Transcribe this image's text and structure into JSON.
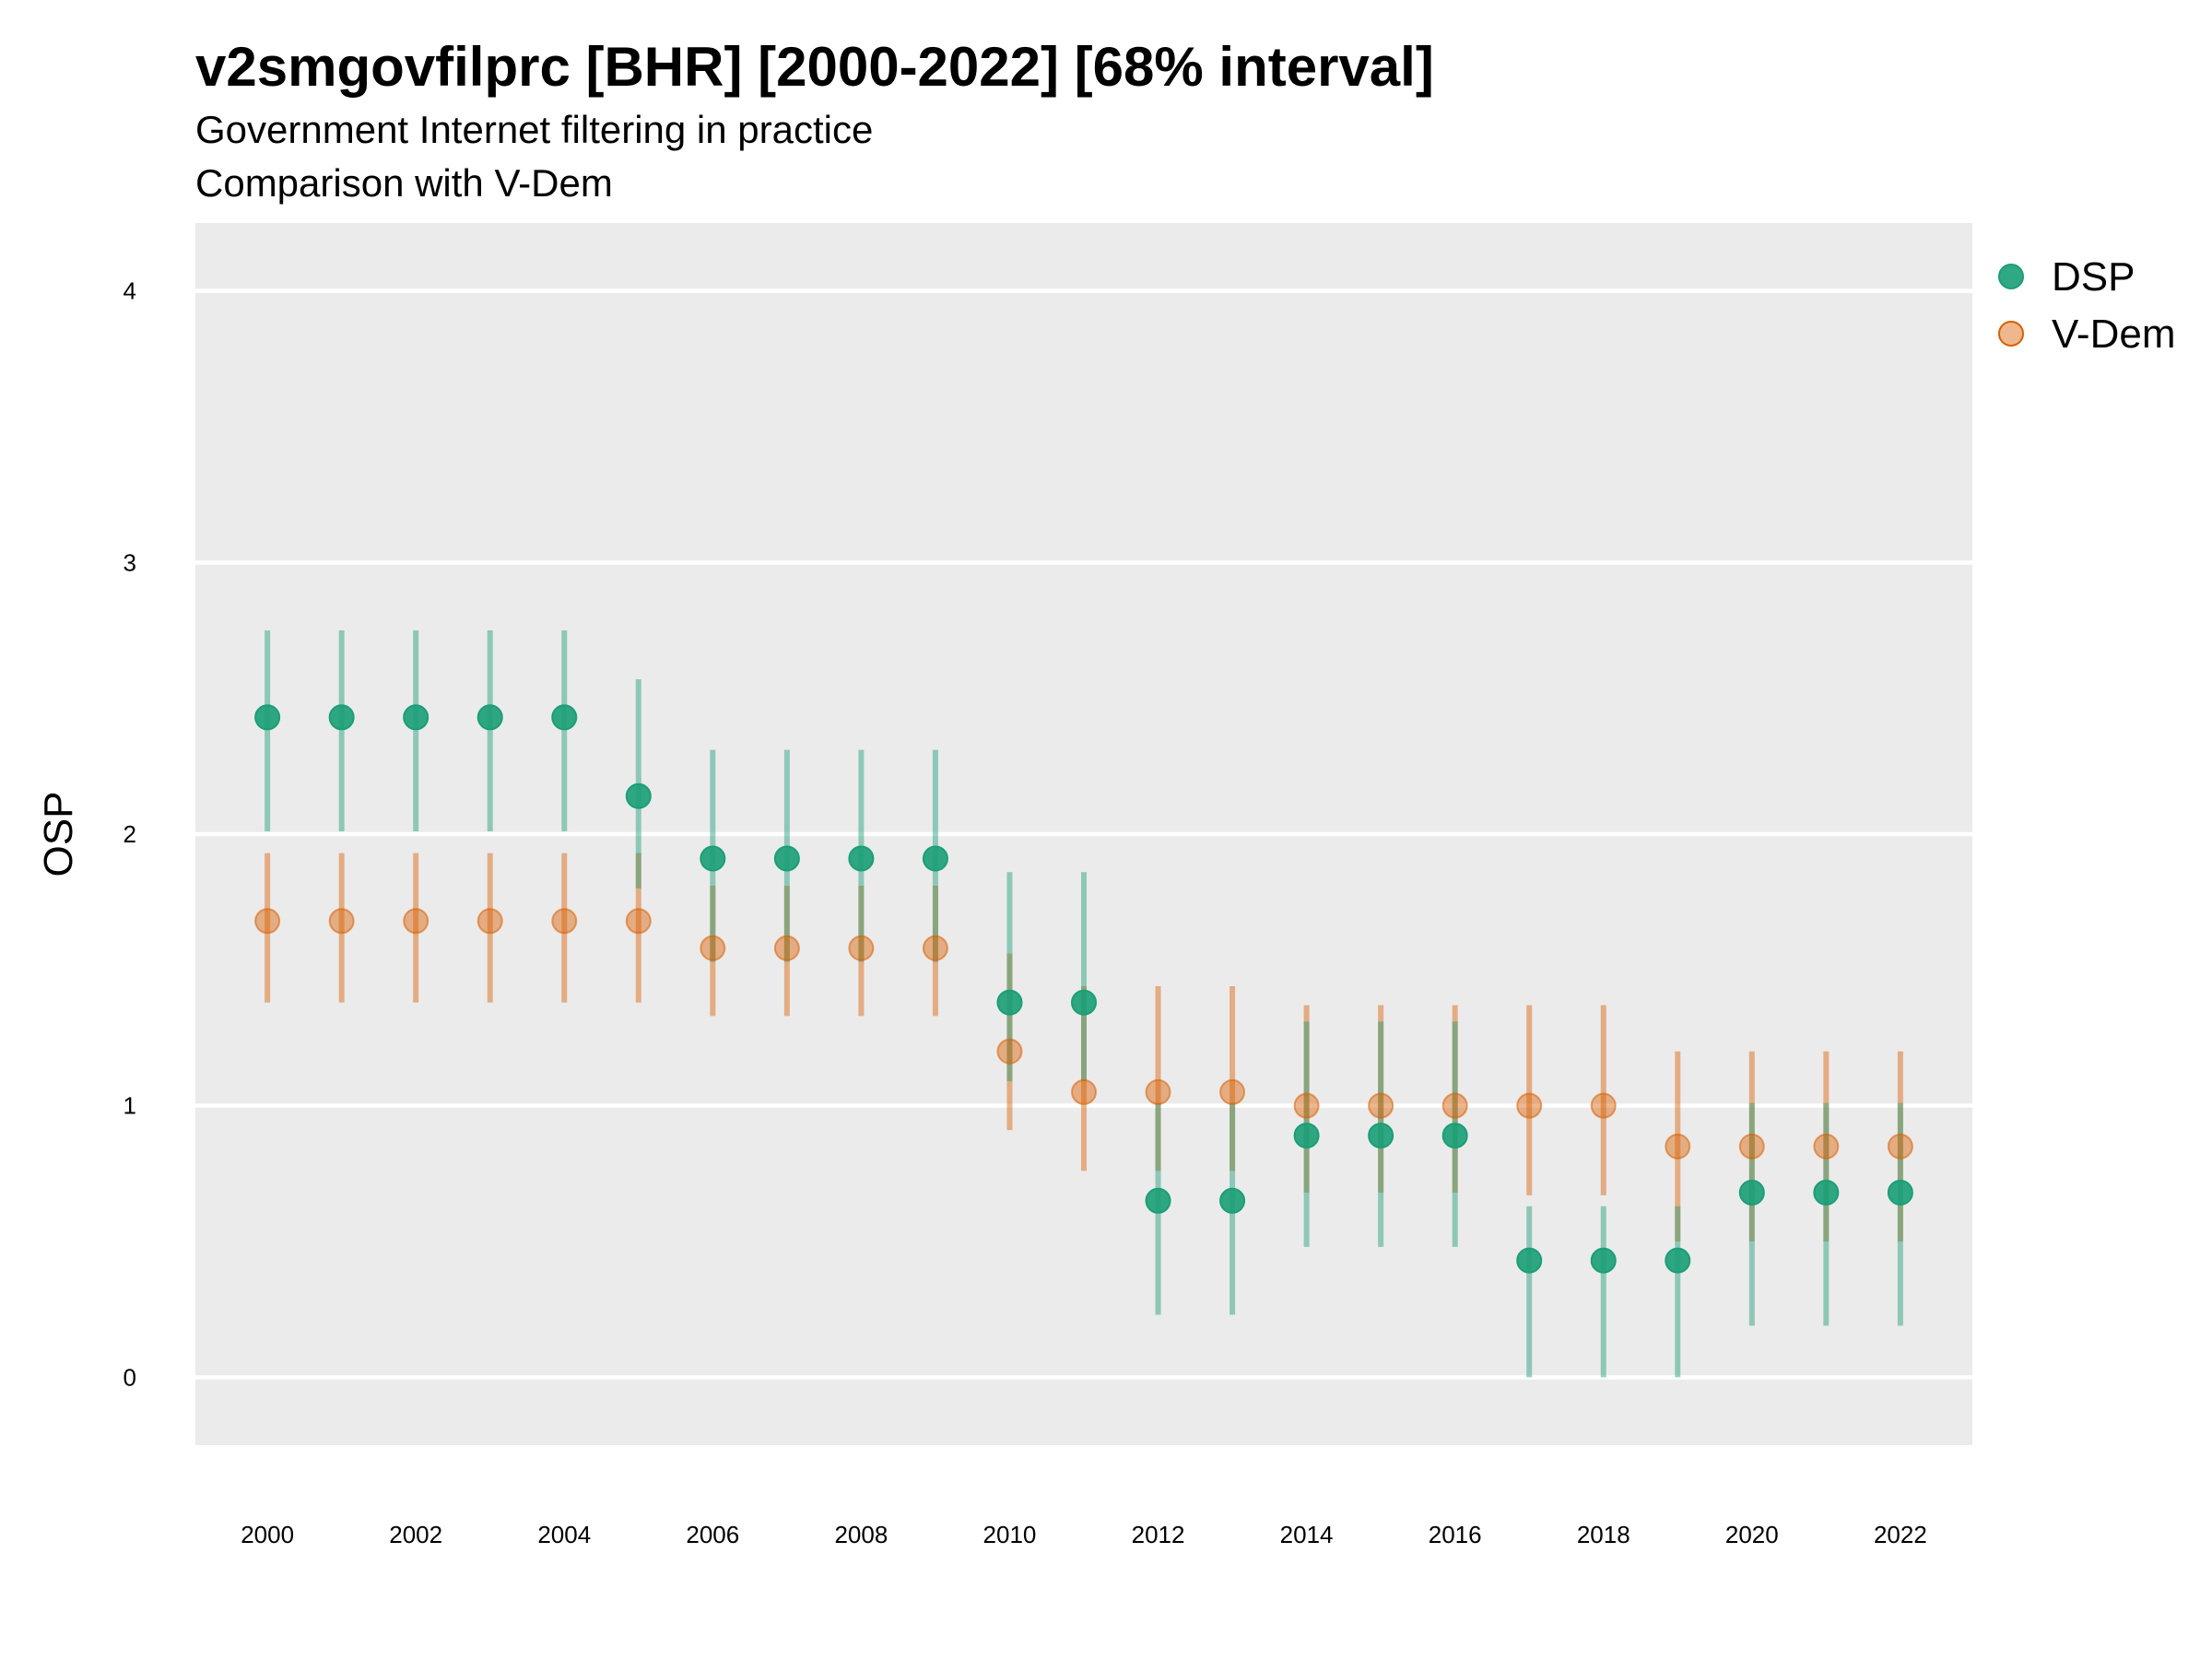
{
  "chart_data": {
    "type": "scatter",
    "title": "v2smgovfilprc [BHR] [2000-2022] [68% interval]",
    "subtitle": "Government Internet filtering in practice",
    "caption": "Comparison with V-Dem",
    "ylabel": "OSP",
    "xlabel": "",
    "ylim": [
      -0.25,
      4.25
    ],
    "yticks": [
      0,
      1,
      2,
      3,
      4
    ],
    "xticks": [
      2000,
      2002,
      2004,
      2006,
      2008,
      2010,
      2012,
      2014,
      2016,
      2018,
      2020,
      2022
    ],
    "xlim": [
      1999.03,
      2022.97
    ],
    "grid": true,
    "legend_position": "right",
    "x": [
      2000,
      2001,
      2002,
      2003,
      2004,
      2005,
      2006,
      2007,
      2008,
      2009,
      2010,
      2011,
      2012,
      2013,
      2014,
      2015,
      2016,
      2017,
      2018,
      2019,
      2020,
      2021,
      2022
    ],
    "series": [
      {
        "name": "DSP",
        "color": "#1b9e77",
        "values": [
          2.43,
          2.43,
          2.43,
          2.43,
          2.43,
          2.14,
          1.91,
          1.91,
          1.91,
          1.91,
          1.38,
          1.38,
          0.65,
          0.65,
          0.89,
          0.89,
          0.89,
          0.43,
          0.43,
          0.43,
          0.68,
          0.68,
          0.68
        ],
        "lower": [
          2.01,
          2.01,
          2.01,
          2.01,
          2.01,
          1.8,
          1.53,
          1.53,
          1.53,
          1.53,
          1.09,
          1.09,
          0.23,
          0.23,
          0.48,
          0.48,
          0.48,
          0.0,
          0.0,
          0.0,
          0.19,
          0.19,
          0.19
        ],
        "upper": [
          2.75,
          2.75,
          2.75,
          2.75,
          2.75,
          2.57,
          2.31,
          2.31,
          2.31,
          2.31,
          1.86,
          1.86,
          1.01,
          1.01,
          1.31,
          1.31,
          1.31,
          0.63,
          0.63,
          0.63,
          1.01,
          1.01,
          1.01
        ]
      },
      {
        "name": "V-Dem",
        "color": "#d95f02",
        "values": [
          1.68,
          1.68,
          1.68,
          1.68,
          1.68,
          1.68,
          1.58,
          1.58,
          1.58,
          1.58,
          1.2,
          1.05,
          1.05,
          1.05,
          1.0,
          1.0,
          1.0,
          1.0,
          1.0,
          0.85,
          0.85,
          0.85,
          0.85
        ],
        "lower": [
          1.38,
          1.38,
          1.38,
          1.38,
          1.38,
          1.38,
          1.33,
          1.33,
          1.33,
          1.33,
          0.91,
          0.76,
          0.76,
          0.76,
          0.68,
          0.68,
          0.68,
          0.67,
          0.67,
          0.5,
          0.5,
          0.5,
          0.5
        ],
        "upper": [
          1.93,
          1.93,
          1.93,
          1.93,
          1.93,
          1.93,
          1.81,
          1.81,
          1.81,
          1.81,
          1.56,
          1.44,
          1.44,
          1.44,
          1.37,
          1.37,
          1.37,
          1.37,
          1.37,
          1.2,
          1.2,
          1.2,
          1.2
        ]
      }
    ]
  }
}
